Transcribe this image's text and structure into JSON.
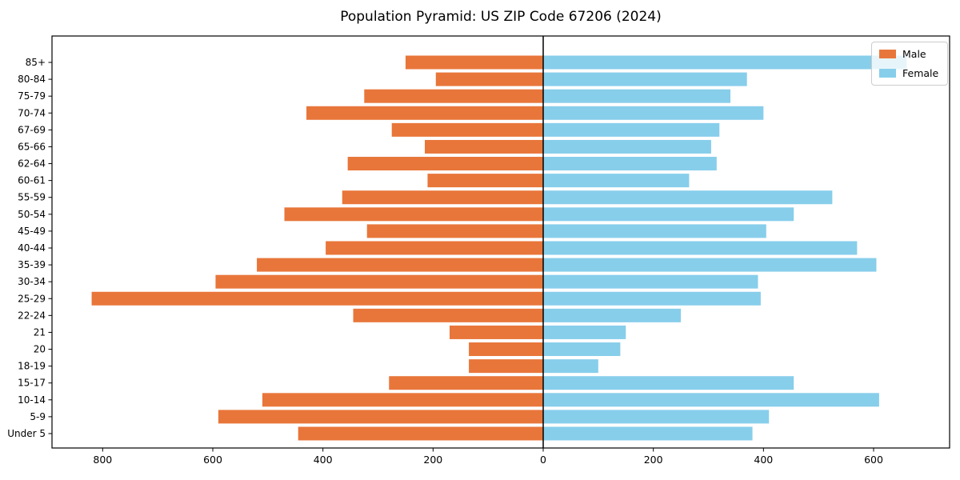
{
  "figure": {
    "title": "Population Pyramid: US ZIP Code 67206 (2024)",
    "background_color": "#ffffff",
    "spine_color": "#000000",
    "center_line_color": "#000000"
  },
  "legend": {
    "position": "upper-right",
    "items": [
      {
        "label": "Male",
        "color": "#e8763a"
      },
      {
        "label": "Female",
        "color": "#87ceeb"
      }
    ]
  },
  "chart_data": {
    "type": "bar",
    "variant": "population-pyramid",
    "orientation": "horizontal",
    "title": "Population Pyramid: US ZIP Code 67206 (2024)",
    "xlabel": "",
    "ylabel": "",
    "grid": false,
    "legend_position": "upper right",
    "center_line_at": 0,
    "xlim": [
      -892,
      738
    ],
    "x_tick_values": [
      -800,
      -600,
      -400,
      -200,
      0,
      200,
      400,
      600
    ],
    "x_tick_labels": [
      "800",
      "600",
      "400",
      "200",
      "0",
      "200",
      "400",
      "600"
    ],
    "categories_top_to_bottom": [
      "85+",
      "80-84",
      "75-79",
      "70-74",
      "67-69",
      "65-66",
      "62-64",
      "60-61",
      "55-59",
      "50-54",
      "45-49",
      "40-44",
      "35-39",
      "30-34",
      "25-29",
      "22-24",
      "21",
      "20",
      "18-19",
      "15-17",
      "10-14",
      "5-9",
      "Under 5"
    ],
    "series": [
      {
        "name": "Male",
        "side": "left",
        "color": "#e8763a",
        "values": [
          250,
          195,
          325,
          430,
          275,
          215,
          355,
          210,
          365,
          470,
          320,
          395,
          520,
          595,
          820,
          345,
          170,
          135,
          135,
          280,
          510,
          590,
          445
        ]
      },
      {
        "name": "Female",
        "side": "right",
        "color": "#87ceeb",
        "values": [
          660,
          370,
          340,
          400,
          320,
          305,
          315,
          265,
          525,
          455,
          405,
          570,
          605,
          390,
          395,
          250,
          150,
          140,
          100,
          455,
          610,
          410,
          380
        ]
      }
    ]
  }
}
